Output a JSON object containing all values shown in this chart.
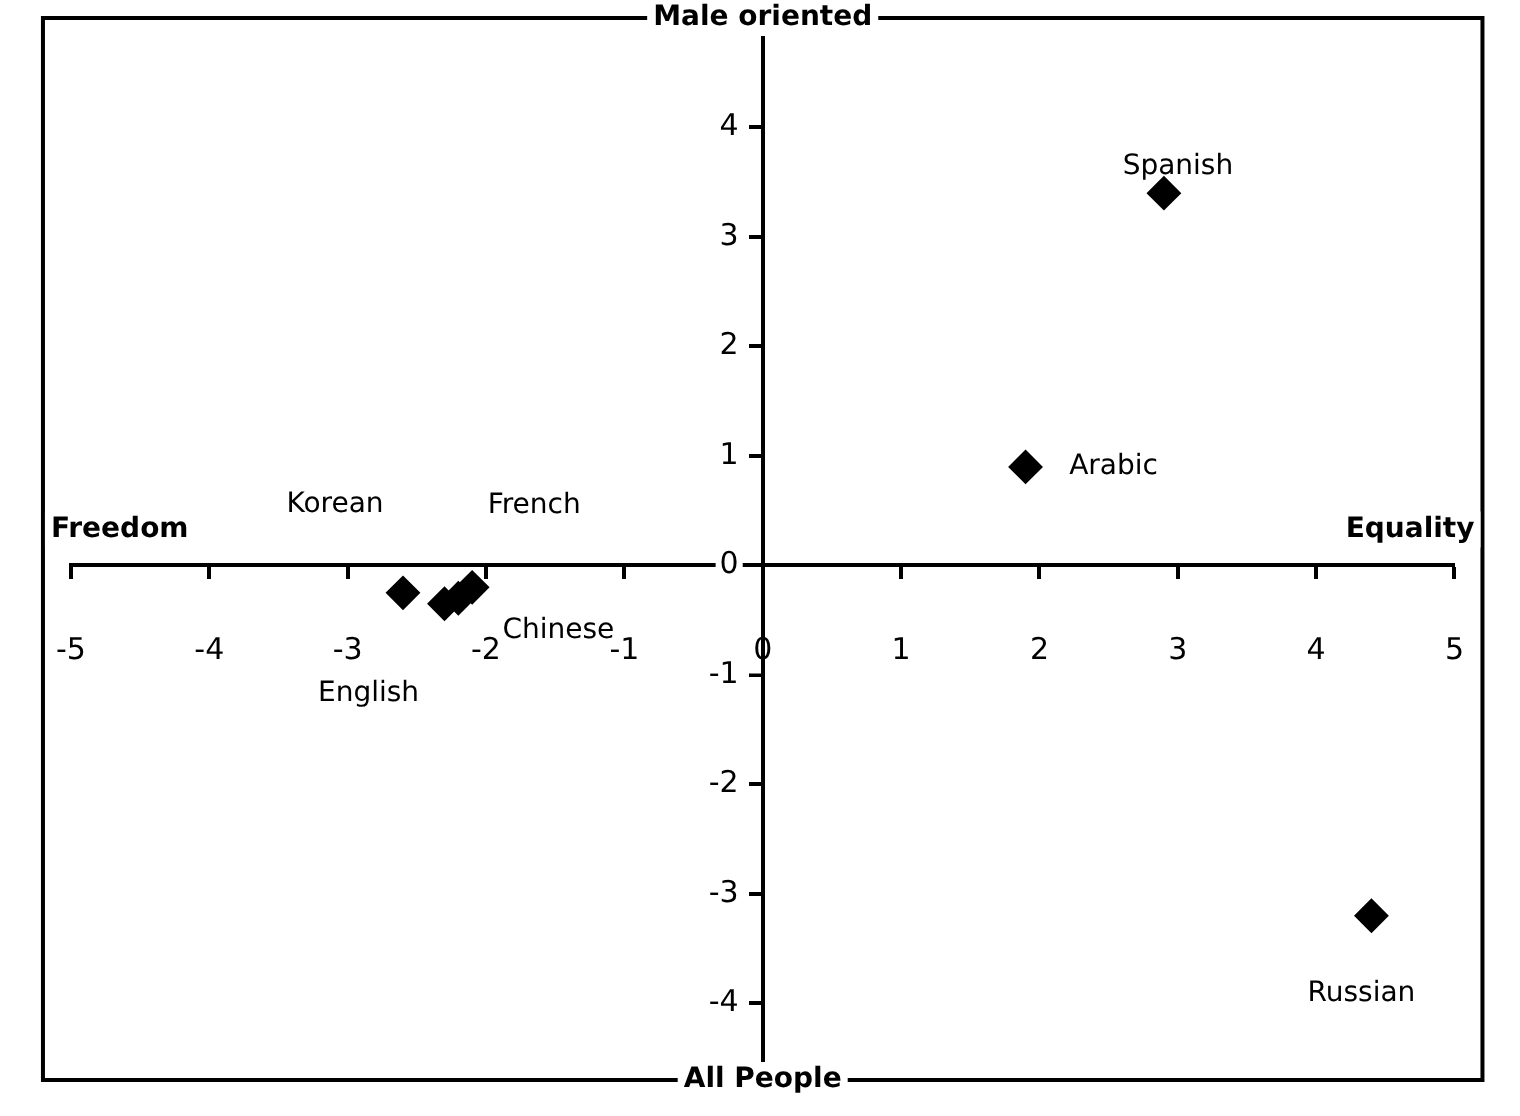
{
  "chart_data": {
    "type": "scatter",
    "xlim": [
      -5,
      5
    ],
    "ylim": [
      -4.7,
      5
    ],
    "xticks": [
      -5,
      -4,
      -3,
      -2,
      -1,
      0,
      1,
      2,
      3,
      4,
      5
    ],
    "yticks": [
      -4,
      -3,
      -2,
      -1,
      0,
      1,
      2,
      3,
      4
    ],
    "grid": false,
    "legend": false,
    "marker": "diamond",
    "series": [
      {
        "name": "Korean",
        "color": "#000000",
        "x": [
          -2.6
        ],
        "values": [
          -0.25
        ]
      },
      {
        "name": "French",
        "color": "#000000",
        "x": [
          -2.1
        ],
        "values": [
          -0.2
        ]
      },
      {
        "name": "English",
        "color": "#000000",
        "x": [
          -2.3
        ],
        "values": [
          -0.35
        ]
      },
      {
        "name": "Chinese",
        "color": "#000000",
        "x": [
          -2.2
        ],
        "values": [
          -0.3
        ]
      },
      {
        "name": "Arabic",
        "color": "#000000",
        "x": [
          1.9
        ],
        "values": [
          0.9
        ]
      },
      {
        "name": "Spanish",
        "color": "#000000",
        "x": [
          2.9
        ],
        "values": [
          3.4
        ]
      },
      {
        "name": "Russian",
        "color": "#000000",
        "x": [
          4.4
        ],
        "values": [
          -3.2
        ]
      }
    ],
    "annotations": [
      "Male oriented",
      "All People",
      "Freedom",
      "Equality"
    ]
  }
}
